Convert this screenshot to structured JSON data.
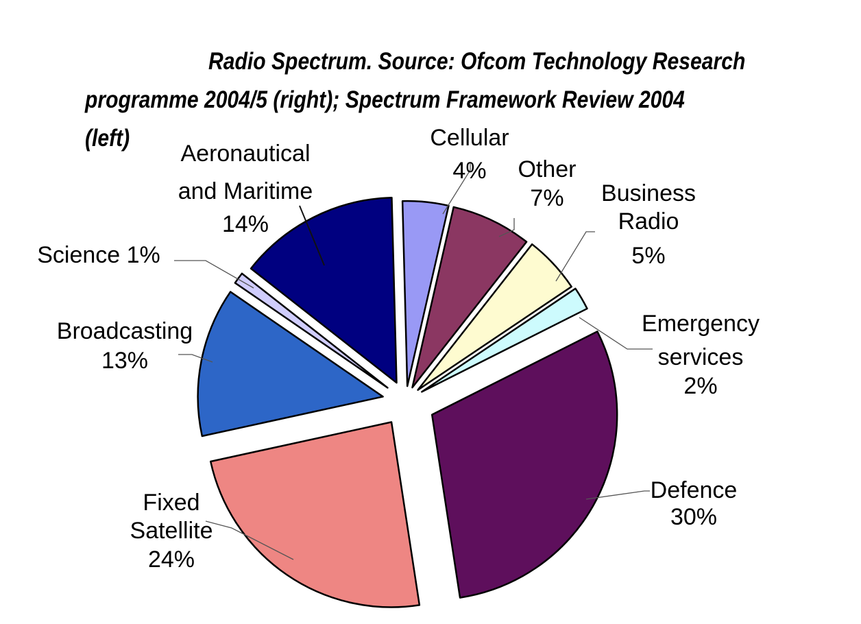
{
  "chart_data": {
    "type": "pie",
    "title_lines": [
      "Radio Spectrum. Source:  Ofcom Technology Research",
      "programme 2004/5 (right); Spectrum Framework Review 2004",
      "(left)"
    ],
    "unit": "%",
    "slices": [
      {
        "label": "Cellular",
        "value": 4,
        "value_label": "4%",
        "color": "#9999f5"
      },
      {
        "label": "Other",
        "value": 7,
        "value_label": "7%",
        "color": "#8b3762"
      },
      {
        "label": "Business Radio",
        "value": 5,
        "value_label": "5%",
        "color": "#fefbd0"
      },
      {
        "label": "Emergency services",
        "value": 2,
        "value_label": "2%",
        "color": "#cdfbfd"
      },
      {
        "label": "Defence",
        "value": 30,
        "value_label": "30%",
        "color": "#5e0f5c"
      },
      {
        "label": "Fixed Satellite",
        "value": 24,
        "value_label": "24%",
        "color": "#ee8683"
      },
      {
        "label": "Broadcasting",
        "value": 13,
        "value_label": "13%",
        "color": "#2d66c7"
      },
      {
        "label": "Science",
        "value": 1,
        "value_label": "1%",
        "color": "#d0cdfd"
      },
      {
        "label": "Aeronautical and Maritime",
        "value": 14,
        "value_label": "14%",
        "color": "#000080"
      }
    ],
    "exploded": true,
    "legend": "none",
    "data_labels": "outside with leader lines"
  }
}
